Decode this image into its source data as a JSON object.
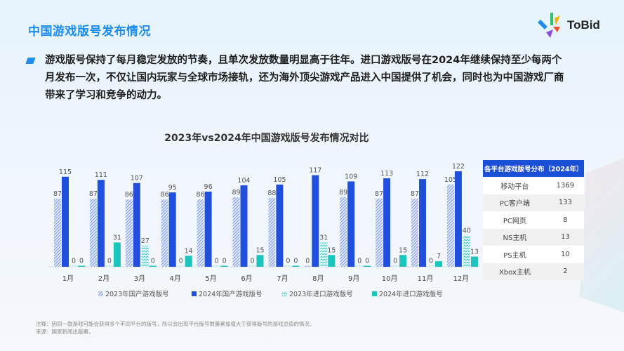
{
  "header": {
    "title": "中国游戏版号发布情况",
    "logo_text": "ToBid"
  },
  "paragraph": "游戏版号保持了每月稳定发放的节奏，且单次发放数量明显高于往年。进口游戏版号在2024年继续保持至少每两个月发布一次，不仅让国内玩家与全球市场接轨，还为海外顶尖游戏产品进入中国提供了机会，同时也为中国游戏厂商带来了学习和竞争的动力。",
  "chart_data": {
    "type": "bar",
    "title": "2023年vs2024年中国游戏版号发布情况对比",
    "categories": [
      "1月",
      "2月",
      "3月",
      "4月",
      "5月",
      "6月",
      "7月",
      "8月",
      "9月",
      "10月",
      "11月",
      "12月"
    ],
    "series": [
      {
        "name": "2023年国产游戏版号",
        "values": [
          87,
          87,
          86,
          86,
          86,
          89,
          88,
          0,
          89,
          87,
          87,
          105
        ],
        "color": "#3b6fe0",
        "pattern": "hatched"
      },
      {
        "name": "2024年国产游戏版号",
        "values": [
          115,
          111,
          107,
          95,
          96,
          104,
          105,
          117,
          109,
          113,
          112,
          122
        ],
        "color": "#1f4fdc"
      },
      {
        "name": "2023年进口游戏版号",
        "values": [
          0,
          0,
          27,
          0,
          0,
          0,
          0,
          31,
          0,
          0,
          0,
          40
        ],
        "color": "#22c3c0",
        "pattern": "zigzag"
      },
      {
        "name": "2024年进口游戏版号",
        "values": [
          0,
          31,
          0,
          14,
          0,
          15,
          0,
          15,
          0,
          15,
          7,
          13
        ],
        "color": "#1cc4bd"
      }
    ],
    "legend": "bottom",
    "grid": false,
    "data_labels": true
  },
  "table": {
    "title": "各平台游戏版号分布（2024年）",
    "rows": [
      [
        "移动平台",
        "1369"
      ],
      [
        "PC客户端",
        "133"
      ],
      [
        "PC网页",
        "8"
      ],
      [
        "NS主机",
        "13"
      ],
      [
        "PS主机",
        "10"
      ],
      [
        "Xbox主机",
        "2"
      ]
    ]
  },
  "footer": {
    "note": "注释：因同一款游戏可能会获得多个不同平台的版号，所以会出现平台版号数量累加值大于获得版号的游戏总值的情况。",
    "source": "来源：国家新闻出版署。"
  }
}
